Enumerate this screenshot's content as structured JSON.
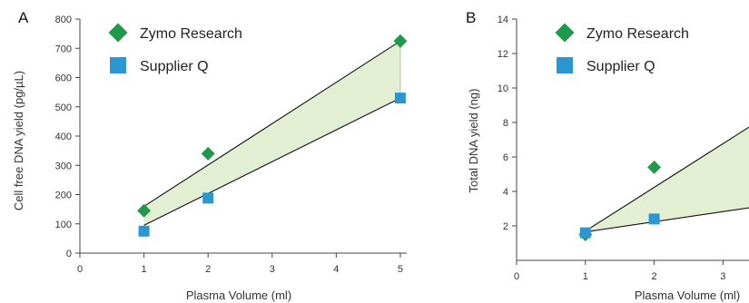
{
  "colors": {
    "zymo": "#1e9a4a",
    "supplier": "#2a97d3",
    "band_fill": "#e3efd3",
    "axis": "#444444",
    "line": "#111111"
  },
  "chart_data": [
    {
      "type": "scatter",
      "panel_label": "A",
      "title": "",
      "xlabel": "Plasma Volume (ml)",
      "ylabel": "Cell free DNA yield (pg/µL)",
      "xlim": [
        0,
        5.1
      ],
      "ylim": [
        0,
        800
      ],
      "xticks": [
        0,
        1,
        2,
        3,
        4,
        5
      ],
      "yticks": [
        0,
        100,
        200,
        300,
        400,
        500,
        600,
        700,
        800
      ],
      "grid": false,
      "legend_position": "top-left",
      "band": {
        "upper_series": 0,
        "lower_series": 1,
        "from_x": 1,
        "to_x": 5
      },
      "series": [
        {
          "name": "Zymo Research",
          "marker": "diamond",
          "x": [
            1,
            2,
            5
          ],
          "y": [
            145,
            340,
            725
          ],
          "fit": {
            "x": [
              1,
              5
            ],
            "y": [
              160,
              725
            ]
          }
        },
        {
          "name": "Supplier Q",
          "marker": "square",
          "x": [
            1,
            2,
            5
          ],
          "y": [
            75,
            188,
            530
          ],
          "fit": {
            "x": [
              1,
              5
            ],
            "y": [
              95,
              530
            ]
          }
        }
      ]
    },
    {
      "type": "scatter",
      "panel_label": "B",
      "title": "",
      "xlabel": "Plasma Volume (ml)",
      "ylabel": "Total DNA yield (ng)",
      "xlim": [
        0,
        3.8
      ],
      "ylim": [
        0,
        14
      ],
      "xticks": [
        0,
        1,
        2,
        3
      ],
      "yticks": [
        2,
        4,
        6,
        8,
        10,
        12,
        14
      ],
      "grid": false,
      "legend_position": "top-left",
      "band": {
        "upper_series": 0,
        "lower_series": 1,
        "from_x": 1,
        "to_x": 3.8
      },
      "series": [
        {
          "name": "Zymo Research",
          "marker": "diamond",
          "x": [
            1,
            2
          ],
          "y": [
            1.5,
            5.4
          ],
          "fit": {
            "x": [
              1,
              3.8
            ],
            "y": [
              1.7,
              8.8
            ]
          }
        },
        {
          "name": "Supplier Q",
          "marker": "square",
          "x": [
            1,
            2
          ],
          "y": [
            1.6,
            2.4
          ],
          "fit": {
            "x": [
              1,
              3.8
            ],
            "y": [
              1.65,
              3.3
            ]
          }
        }
      ]
    }
  ]
}
